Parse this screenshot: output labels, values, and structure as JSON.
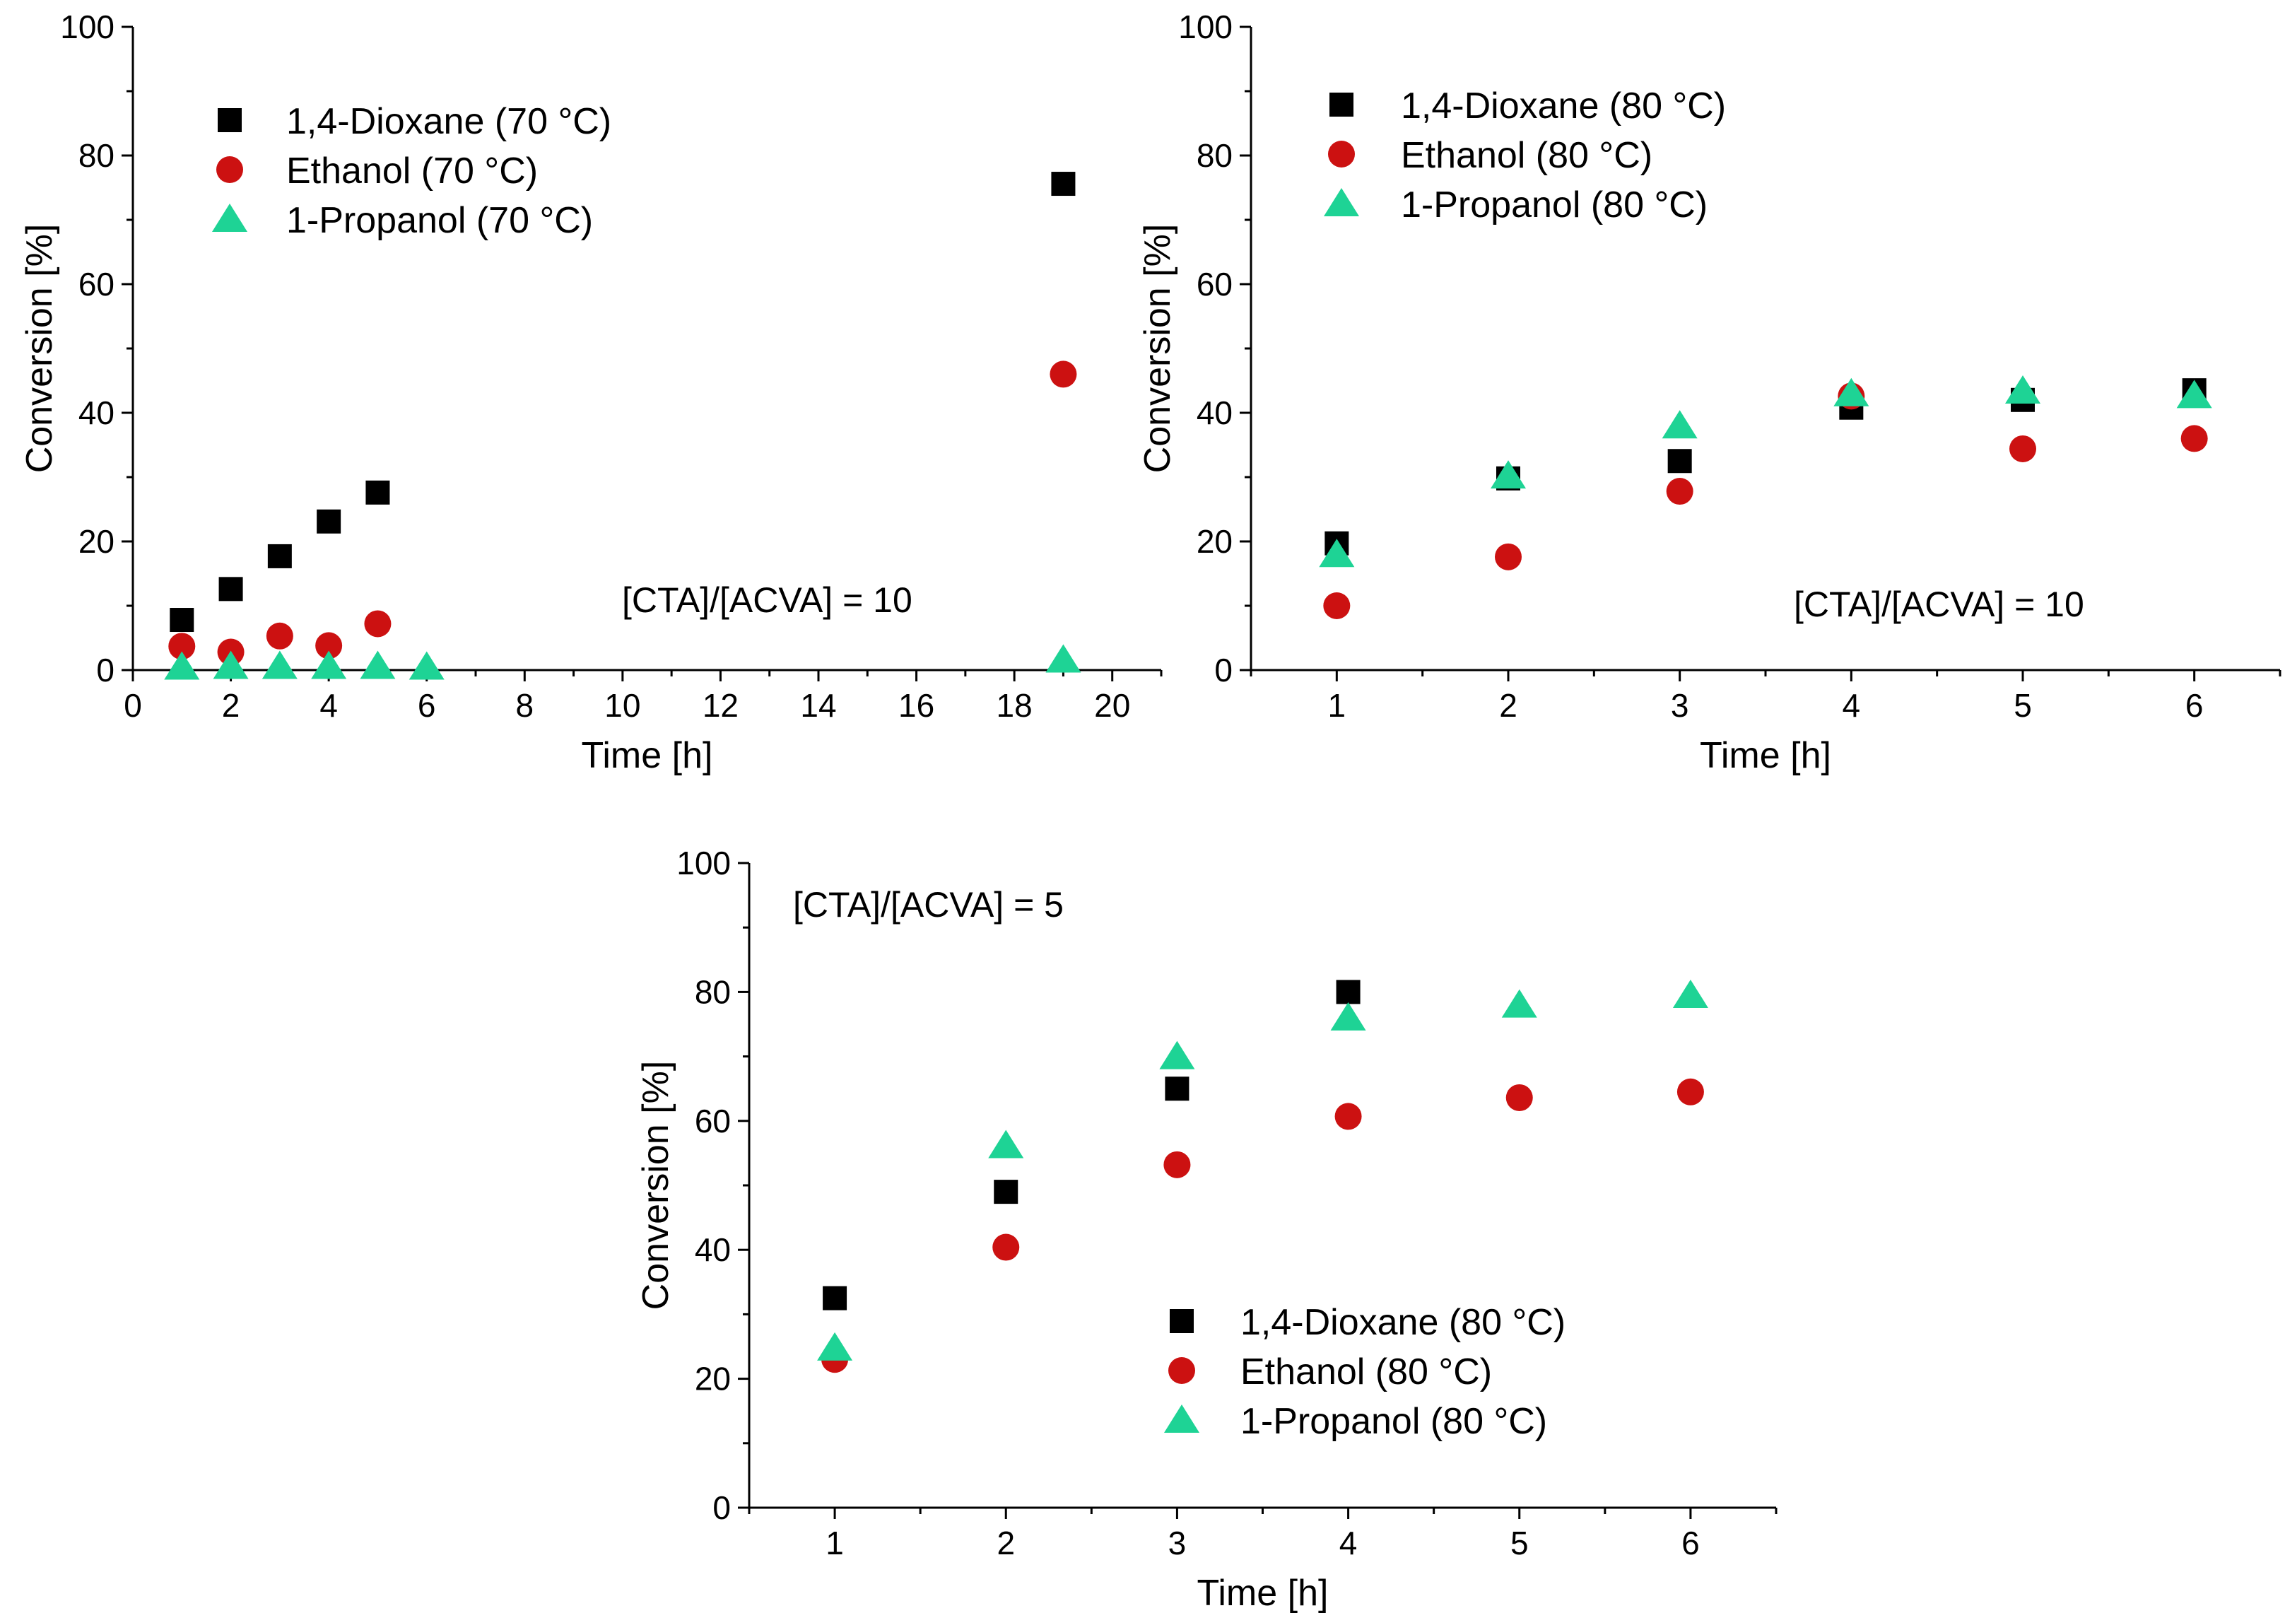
{
  "colors": {
    "dioxane": "#000000",
    "ethanol": "#cc1111",
    "propanol": "#1ed395"
  },
  "chart_data": [
    {
      "type": "scatter",
      "xlabel": "Time [h]",
      "ylabel": "Conversion [%]",
      "xlim": [
        0,
        21
      ],
      "ylim": [
        0,
        100
      ],
      "xticks": [
        0,
        2,
        4,
        6,
        8,
        10,
        12,
        14,
        16,
        18,
        20
      ],
      "yticks": [
        0,
        20,
        40,
        60,
        80,
        100
      ],
      "annotation": "[CTA]/[ACVA] = 10",
      "legend_position": "top-left",
      "series": [
        {
          "name": "1,4-Dioxane (70 °C)",
          "marker": "square",
          "color_key": "dioxane",
          "x": [
            1,
            2,
            3,
            4,
            5,
            19
          ],
          "y": [
            7.8,
            12.6,
            17.7,
            23.1,
            27.6,
            75.6
          ]
        },
        {
          "name": "Ethanol (70 °C)",
          "marker": "circle",
          "color_key": "ethanol",
          "x": [
            1,
            2,
            3,
            4,
            5,
            19
          ],
          "y": [
            3.7,
            2.8,
            5.3,
            3.8,
            7.2,
            46.0
          ]
        },
        {
          "name": "1-Propanol (70 °C)",
          "marker": "triangle",
          "color_key": "propanol",
          "x": [
            1,
            2,
            3,
            4,
            5,
            6,
            19
          ],
          "y": [
            0.5,
            0.6,
            0.6,
            0.6,
            0.6,
            0.5,
            1.6
          ]
        }
      ]
    },
    {
      "type": "scatter",
      "xlabel": "Time [h]",
      "ylabel": "Conversion [%]",
      "xlim": [
        0.5,
        6.5
      ],
      "ylim": [
        0,
        100
      ],
      "xticks": [
        1,
        2,
        3,
        4,
        5,
        6
      ],
      "yticks": [
        0,
        20,
        40,
        60,
        80,
        100
      ],
      "annotation": "[CTA]/[ACVA] = 10",
      "legend_position": "top-left",
      "series": [
        {
          "name": "1,4-Dioxane (80 °C)",
          "marker": "square",
          "color_key": "dioxane",
          "x": [
            1,
            2,
            3,
            4,
            5,
            6
          ],
          "y": [
            19.7,
            29.8,
            32.5,
            40.8,
            42.0,
            43.5
          ]
        },
        {
          "name": "Ethanol (80 °C)",
          "marker": "circle",
          "color_key": "ethanol",
          "x": [
            1,
            2,
            3,
            4,
            5,
            6
          ],
          "y": [
            10.0,
            17.6,
            27.8,
            42.6,
            34.4,
            36.0
          ]
        },
        {
          "name": "1-Propanol (80 °C)",
          "marker": "triangle",
          "color_key": "propanol",
          "x": [
            1,
            2,
            3,
            4,
            5,
            6
          ],
          "y": [
            18.0,
            30.2,
            38.0,
            43.0,
            43.4,
            42.7
          ]
        }
      ]
    },
    {
      "type": "scatter",
      "xlabel": "Time [h]",
      "ylabel": "Conversion [%]",
      "xlim": [
        0.5,
        6.5
      ],
      "ylim": [
        0,
        100
      ],
      "xticks": [
        1,
        2,
        3,
        4,
        5,
        6
      ],
      "yticks": [
        0,
        20,
        40,
        60,
        80,
        100
      ],
      "annotation": "[CTA]/[ACVA] = 5",
      "legend_position": "bottom-center",
      "series": [
        {
          "name": "1,4-Dioxane (80 °C)",
          "marker": "square",
          "color_key": "dioxane",
          "x": [
            1,
            2,
            3,
            4
          ],
          "y": [
            32.5,
            49.0,
            65.0,
            80.0
          ]
        },
        {
          "name": "Ethanol  (80 °C)",
          "marker": "circle",
          "color_key": "ethanol",
          "x": [
            1,
            2,
            3,
            4,
            5,
            6
          ],
          "y": [
            23.0,
            40.4,
            53.2,
            60.7,
            63.6,
            64.5
          ]
        },
        {
          "name": "1-Propanol  (80 °C)",
          "marker": "triangle",
          "color_key": "propanol",
          "x": [
            1,
            2,
            3,
            4,
            5,
            6
          ],
          "y": [
            24.8,
            56.2,
            70.0,
            76.0,
            78.0,
            79.5
          ]
        }
      ]
    }
  ]
}
